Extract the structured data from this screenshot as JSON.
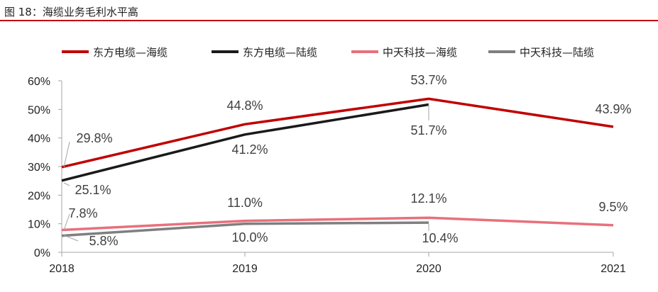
{
  "figure": {
    "title": "图 18：海缆业务毛利水平高"
  },
  "chart_data": {
    "type": "line",
    "categories": [
      "2018",
      "2019",
      "2020",
      "2021"
    ],
    "ylim": [
      0,
      60
    ],
    "yticks": [
      "0%",
      "10%",
      "20%",
      "30%",
      "40%",
      "50%",
      "60%"
    ],
    "grid": false,
    "legend_position": "top",
    "series": [
      {
        "name": "东方电缆—海缆",
        "color": "#c00000",
        "values": [
          29.8,
          44.8,
          53.7,
          43.9
        ],
        "labels": [
          "29.8%",
          "44.8%",
          "53.7%",
          "43.9%"
        ]
      },
      {
        "name": "东方电缆—陆缆",
        "color": "#1a1a1a",
        "values": [
          25.1,
          41.2,
          51.7,
          null
        ],
        "labels": [
          "25.1%",
          "41.2%",
          "51.7%",
          null
        ]
      },
      {
        "name": "中天科技—海缆",
        "color": "#e8707c",
        "values": [
          7.8,
          11.0,
          12.1,
          9.5
        ],
        "labels": [
          "7.8%",
          "11.0%",
          "12.1%",
          "9.5%"
        ]
      },
      {
        "name": "中天科技—陆缆",
        "color": "#7f7f7f",
        "values": [
          5.8,
          10.0,
          10.4,
          null
        ],
        "labels": [
          "5.8%",
          "10.0%",
          "10.4%",
          null
        ]
      }
    ]
  }
}
